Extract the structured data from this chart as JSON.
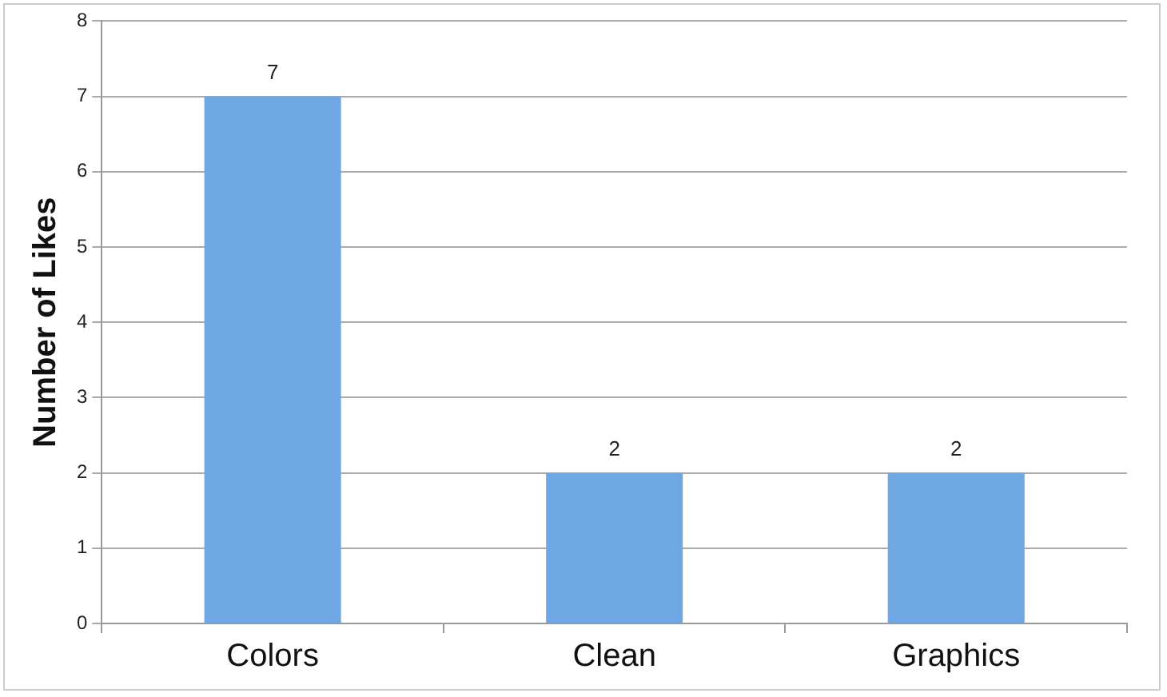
{
  "chart_data": {
    "type": "bar",
    "ylabel": "Number of Likes",
    "categories": [
      "Colors",
      "Clean",
      "Graphics"
    ],
    "values": [
      7,
      2,
      2
    ],
    "color": "#6fa6e4",
    "ylim": [
      0,
      8
    ],
    "yticks": [
      0,
      1,
      2,
      3,
      4,
      5,
      6,
      7,
      8
    ],
    "grid": "y",
    "data_labels": true
  }
}
